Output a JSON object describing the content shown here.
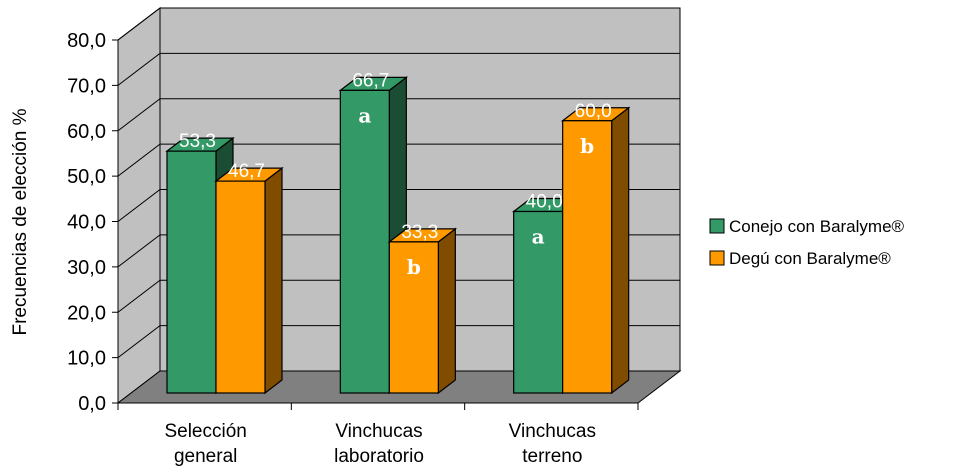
{
  "chart_data": {
    "type": "bar",
    "style": "3d-clustered-column",
    "categories": [
      [
        "Selección",
        "general"
      ],
      [
        "Vinchucas",
        "laboratorio"
      ],
      [
        "Vinchucas",
        "terreno"
      ]
    ],
    "series": [
      {
        "name": "Conejo con Baralyme®",
        "color": "#339966",
        "values": [
          53.3,
          66.7,
          40.0
        ],
        "data_labels": [
          "53,3",
          "66,7",
          "40,0"
        ],
        "marks": [
          "",
          "a",
          "a"
        ]
      },
      {
        "name": "Degú con Baralyme®",
        "color": "#ff9900",
        "values": [
          46.7,
          33.3,
          60.0
        ],
        "data_labels": [
          "46,7",
          "33,3",
          "60,0"
        ],
        "marks": [
          "",
          "b",
          "b"
        ]
      }
    ],
    "title": "",
    "xlabel": "",
    "ylabel": "Frecuencias de elección %",
    "ylim": [
      0,
      80
    ],
    "yticks": [
      0,
      10,
      20,
      30,
      40,
      50,
      60,
      70,
      80
    ],
    "ytick_labels": [
      "0,0",
      "10,0",
      "20,0",
      "30,0",
      "40,0",
      "50,0",
      "60,0",
      "70,0",
      "80,0"
    ],
    "grid": true,
    "legend": "right",
    "colors": {
      "back_wall": "#c0c0c0",
      "floor": "#808080",
      "grid": "#000000"
    }
  }
}
